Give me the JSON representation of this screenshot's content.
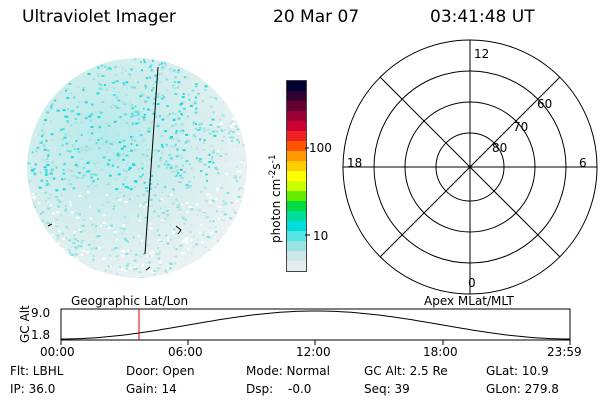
{
  "header": {
    "instrument": "Ultraviolet Imager",
    "date": "20 Mar 07",
    "time": "03:41:48 UT"
  },
  "colorbar": {
    "unit_label": "photon cm",
    "unit_exp1": "-2",
    "unit_s": "s",
    "unit_exp2": "-1",
    "tick_100": "100",
    "tick_10": "10",
    "colors": [
      "#000033",
      "#330033",
      "#660033",
      "#990033",
      "#cc0033",
      "#ee2222",
      "#ff5500",
      "#ff9900",
      "#ffcc00",
      "#ffff00",
      "#ccff00",
      "#66ee00",
      "#00dd44",
      "#00dd99",
      "#00dddd",
      "#55e5e5",
      "#99e5e5",
      "#cce8e8",
      "#e5eeee"
    ]
  },
  "polar": {
    "lat_60": "60",
    "lat_70": "70",
    "lat_80": "80",
    "mlt_12": "12",
    "mlt_18": "18",
    "mlt_6": "6",
    "mlt_0": "0"
  },
  "timeline": {
    "left_label": "Geographic Lat/Lon",
    "right_label": "Apex MLat/MLT",
    "axis_label": "GC Alt",
    "y_max": "9.0",
    "y_min": "1.8",
    "ticks": [
      "00:00",
      "06:00",
      "12:00",
      "18:00",
      "23:59"
    ],
    "marker_color": "#cc0000"
  },
  "info": {
    "flt": "Flt: LBHL",
    "ip": "IP: 36.0",
    "door": "Door: Open",
    "gain": "Gain: 14",
    "mode": "Mode: Normal",
    "dsp_label": "Dsp:",
    "dsp_value": "-0.0",
    "gcalt": "GC Alt: 2.5 Re",
    "seq": "Seq: 39",
    "glat": "GLat: 10.9",
    "glon": "GLon: 279.8"
  }
}
